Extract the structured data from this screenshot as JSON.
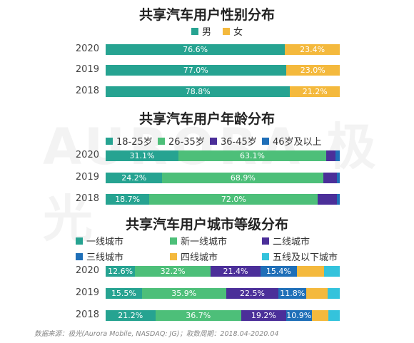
{
  "colors": {
    "teal": "#26a391",
    "green": "#4dbf79",
    "purple": "#4b2f99",
    "blue": "#1f6fb8",
    "yellow": "#f4b93d",
    "cyan": "#34c3dc"
  },
  "watermark": "AURORA 极光",
  "source": "数据来源：极光(Aurora Mobile, NASDAQ: JG)；取数周期：2018.04-2020.04",
  "chart_data": [
    {
      "type": "bar",
      "stacked": true,
      "orientation": "horizontal",
      "title": "共享汽车用户性别分布",
      "categories": [
        "2020",
        "2019",
        "2018"
      ],
      "series": [
        {
          "name": "男",
          "values": [
            76.6,
            77.0,
            78.8
          ],
          "labels": [
            "76.6%",
            "77.0%",
            "78.8%"
          ],
          "color": "#26a391"
        },
        {
          "name": "女",
          "values": [
            23.4,
            23.0,
            21.2
          ],
          "labels": [
            "23.4%",
            "23.0%",
            "21.2%"
          ],
          "color": "#f4b93d"
        }
      ]
    },
    {
      "type": "bar",
      "stacked": true,
      "orientation": "horizontal",
      "title": "共享汽车用户年龄分布",
      "categories": [
        "2020",
        "2019",
        "2018"
      ],
      "series": [
        {
          "name": "18-25岁",
          "values": [
            31.1,
            24.2,
            18.7
          ],
          "labels": [
            "31.1%",
            "24.2%",
            "18.7%"
          ],
          "color": "#26a391"
        },
        {
          "name": "26-35岁",
          "values": [
            63.1,
            68.9,
            72.0
          ],
          "labels": [
            "63.1%",
            "68.9%",
            "72.0%"
          ],
          "color": "#4dbf79"
        },
        {
          "name": "36-45岁",
          "values": [
            3.9,
            5.8,
            8.1
          ],
          "labels": [
            "",
            "",
            ""
          ],
          "color": "#4b2f99"
        },
        {
          "name": "46岁及以上",
          "values": [
            1.9,
            1.1,
            1.2
          ],
          "labels": [
            "",
            "",
            ""
          ],
          "color": "#1f6fb8"
        }
      ]
    },
    {
      "type": "bar",
      "stacked": true,
      "orientation": "horizontal",
      "title": "共享汽车用户城市等级分布",
      "categories": [
        "2020",
        "2019",
        "2018"
      ],
      "series": [
        {
          "name": "一线城市",
          "values": [
            12.6,
            15.5,
            21.2
          ],
          "labels": [
            "12.6%",
            "15.5%",
            "21.2%"
          ],
          "color": "#26a391"
        },
        {
          "name": "新一线城市",
          "values": [
            32.2,
            35.9,
            36.7
          ],
          "labels": [
            "32.2%",
            "35.9%",
            "36.7%"
          ],
          "color": "#4dbf79"
        },
        {
          "name": "二线城市",
          "values": [
            21.4,
            22.5,
            19.2
          ],
          "labels": [
            "21.4%",
            "22.5%",
            "19.2%"
          ],
          "color": "#4b2f99"
        },
        {
          "name": "三线城市",
          "values": [
            15.4,
            11.8,
            10.9
          ],
          "labels": [
            "15.4%",
            "11.8%",
            "10.9%"
          ],
          "color": "#1f6fb8"
        },
        {
          "name": "四线城市",
          "values": [
            11.6,
            9.1,
            7.2
          ],
          "labels": [
            "",
            "",
            ""
          ],
          "color": "#f4b93d"
        },
        {
          "name": "五线及以下城市",
          "values": [
            6.8,
            5.2,
            4.8
          ],
          "labels": [
            "",
            "",
            ""
          ],
          "color": "#34c3dc"
        }
      ]
    }
  ]
}
